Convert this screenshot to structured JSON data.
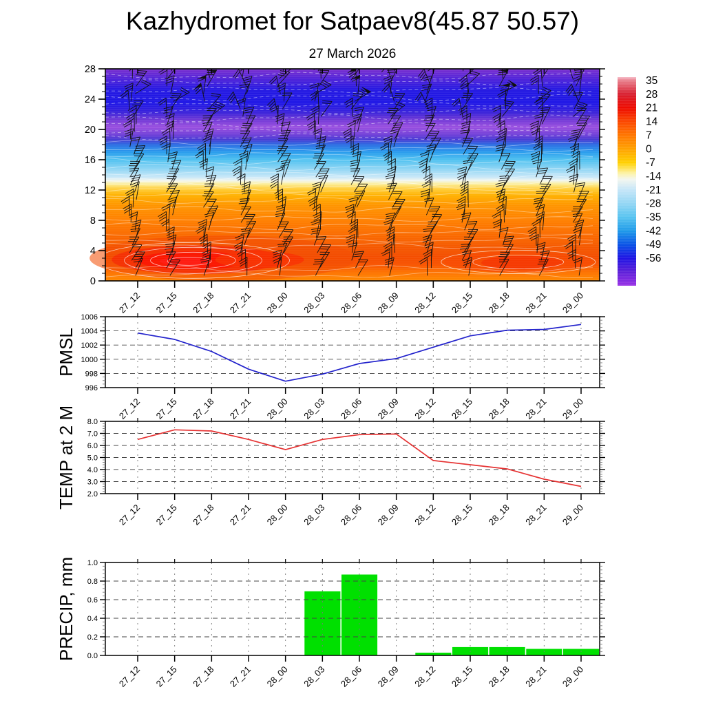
{
  "ui": {
    "title": "Kazhydromet for Satpaev8(45.87 50.57)",
    "subtitle": "27 March 2026"
  },
  "times": [
    "27_12",
    "27_15",
    "27_18",
    "27_21",
    "28_00",
    "28_03",
    "28_06",
    "28_09",
    "28_12",
    "28_15",
    "28_18",
    "28_21",
    "29_00"
  ],
  "chart_data": [
    {
      "id": "upper_air_cross_section",
      "type": "heatmap",
      "description": "time-height temperature cross-section with wind barbs and white contour lines",
      "ylim": [
        0,
        28
      ],
      "y_ticks": [
        0,
        4,
        8,
        12,
        16,
        20,
        24,
        28
      ],
      "y_minor_step": 1,
      "x_categories": [
        "27_12",
        "27_15",
        "27_18",
        "27_21",
        "28_00",
        "28_03",
        "28_06",
        "28_09",
        "28_12",
        "28_15",
        "28_18",
        "28_21",
        "29_00"
      ],
      "colorbar": {
        "tick_labels": [
          "35",
          "28",
          "21",
          "14",
          "7",
          "0",
          "-7",
          "-14",
          "-21",
          "-28",
          "-35",
          "-42",
          "-49",
          "-56"
        ],
        "stops": [
          {
            "offset": 0.0,
            "color": "#f6bac6"
          },
          {
            "offset": 0.017,
            "color": "#e87f8c"
          },
          {
            "offset": 0.082,
            "color": "#d82030"
          },
          {
            "offset": 0.148,
            "color": "#ee0c00"
          },
          {
            "offset": 0.214,
            "color": "#fb4800"
          },
          {
            "offset": 0.28,
            "color": "#ff7700"
          },
          {
            "offset": 0.345,
            "color": "#ffa200"
          },
          {
            "offset": 0.41,
            "color": "#ffd000"
          },
          {
            "offset": 0.462,
            "color": "#fdf3a8"
          },
          {
            "offset": 0.49,
            "color": "#f3f6ef"
          },
          {
            "offset": 0.54,
            "color": "#c6e6f8"
          },
          {
            "offset": 0.607,
            "color": "#93d6f4"
          },
          {
            "offset": 0.672,
            "color": "#57c3f0"
          },
          {
            "offset": 0.737,
            "color": "#1f9ae9"
          },
          {
            "offset": 0.803,
            "color": "#0a53e6"
          },
          {
            "offset": 0.868,
            "color": "#1f14e4"
          },
          {
            "offset": 0.93,
            "color": "#5a1fd8"
          },
          {
            "offset": 1.0,
            "color": "#9932e6"
          }
        ]
      },
      "height_color_profile": [
        [
          0.0,
          "#ff8a00"
        ],
        [
          1.2,
          "#fd7100"
        ],
        [
          2.2,
          "#f85200"
        ],
        [
          3.2,
          "#f44e00"
        ],
        [
          4.5,
          "#f55900"
        ],
        [
          6.0,
          "#fa6a00"
        ],
        [
          8.0,
          "#ff8000"
        ],
        [
          10.0,
          "#ff9600"
        ],
        [
          11.3,
          "#ffb100"
        ],
        [
          12.2,
          "#ffd040"
        ],
        [
          12.8,
          "#fcee9a"
        ],
        [
          13.25,
          "#f2f6ee"
        ],
        [
          13.7,
          "#c9e8f8"
        ],
        [
          14.8,
          "#8ed5f4"
        ],
        [
          16.0,
          "#4fc1f0"
        ],
        [
          17.0,
          "#2a9ded"
        ],
        [
          18.0,
          "#2d6ce2"
        ],
        [
          18.7,
          "#4a3ad4"
        ],
        [
          19.3,
          "#7040d8"
        ],
        [
          20.3,
          "#9a50e0"
        ],
        [
          21.3,
          "#7038d6"
        ],
        [
          22.2,
          "#3c24da"
        ],
        [
          23.5,
          "#1f17e6"
        ],
        [
          25.2,
          "#2419e2"
        ],
        [
          26.5,
          "#4a22da"
        ],
        [
          28.0,
          "#7c30d0"
        ]
      ],
      "hot_cores": [
        {
          "cx_tick": 2.3,
          "h": 3.0,
          "rx_ticks": 3.6,
          "ry_h": 3.0,
          "color": "#f24a00",
          "opacity": 0.55
        },
        {
          "cx_tick": 1.6,
          "h": 2.8,
          "rx_ticks": 2.3,
          "ry_h": 1.9,
          "color": "#f52e02",
          "opacity": 0.9
        },
        {
          "cx_tick": 1.5,
          "h": 2.7,
          "rx_ticks": 1.5,
          "ry_h": 1.2,
          "color": "#fb1500",
          "opacity": 0.95
        },
        {
          "cx_tick": 1.3,
          "h": 2.6,
          "rx_ticks": 0.7,
          "ry_h": 0.6,
          "color": "#ff1a10",
          "opacity": 1.0
        },
        {
          "cx_tick": 3.3,
          "h": 2.8,
          "rx_ticks": 1.2,
          "ry_h": 1.1,
          "color": "#f83000",
          "opacity": 0.85
        },
        {
          "cx_tick": 10.3,
          "h": 2.5,
          "rx_ticks": 2.0,
          "ry_h": 1.4,
          "color": "#f84a00",
          "opacity": 0.8
        },
        {
          "cx_tick": 10.4,
          "h": 2.4,
          "rx_ticks": 1.1,
          "ry_h": 0.9,
          "color": "#f63500",
          "opacity": 0.85
        }
      ],
      "wind_barbs": {
        "columns": 13,
        "level_start": 0.7,
        "level_end": 27.7,
        "level_step": 1.0
      }
    },
    {
      "id": "pmsl",
      "type": "line",
      "ylabel": "PMSL",
      "ylim": [
        996,
        1006
      ],
      "y_ticks": [
        996,
        998,
        1000,
        1002,
        1004,
        1006
      ],
      "y_tick_labels": [
        "996",
        "998",
        "1000",
        "1002",
        "1004",
        "1006"
      ],
      "y_minor_step": 0.5,
      "line_color": "#2222cc",
      "x_categories": [
        "27_12",
        "27_15",
        "27_18",
        "27_21",
        "28_00",
        "28_03",
        "28_06",
        "28_09",
        "28_12",
        "28_15",
        "28_18",
        "28_21",
        "29_00"
      ],
      "values": [
        1003.7,
        1002.8,
        1001.1,
        998.6,
        996.9,
        997.9,
        999.4,
        1000.1,
        1001.7,
        1003.3,
        1004.1,
        1004.2,
        1004.9
      ]
    },
    {
      "id": "temp_2m",
      "type": "line",
      "ylabel": "TEMP at 2 M",
      "ylim": [
        2.0,
        8.0
      ],
      "y_ticks": [
        2,
        3,
        4,
        5,
        6,
        7,
        8
      ],
      "y_tick_labels": [
        "2.0",
        "3.0",
        "4.0",
        "5.0",
        "6.0",
        "7.0",
        "8.0"
      ],
      "y_minor_step": 0.2,
      "line_color": "#e63232",
      "x_categories": [
        "27_12",
        "27_15",
        "27_18",
        "27_21",
        "28_00",
        "28_03",
        "28_06",
        "28_09",
        "28_12",
        "28_15",
        "28_18",
        "28_21",
        "29_00"
      ],
      "values": [
        6.5,
        7.3,
        7.2,
        6.5,
        5.65,
        6.5,
        6.9,
        6.95,
        4.75,
        4.4,
        4.05,
        3.2,
        2.6
      ]
    },
    {
      "id": "precip",
      "type": "bar",
      "ylabel": "PRECIP, mm",
      "ylim": [
        0.0,
        1.0
      ],
      "y_ticks": [
        0.0,
        0.2,
        0.4,
        0.6,
        0.8,
        1.0
      ],
      "y_tick_labels": [
        "0.0",
        "0.2",
        "0.4",
        "0.6",
        "0.8",
        "1.0"
      ],
      "y_minor_step": 0.04,
      "bar_color": "#00e000",
      "x_categories": [
        "27_12",
        "27_15",
        "27_18",
        "27_21",
        "28_00",
        "28_03",
        "28_06",
        "28_09",
        "28_12",
        "28_15",
        "28_18",
        "28_21",
        "29_00"
      ],
      "values": [
        0,
        0,
        0,
        0,
        0,
        0.69,
        0.87,
        0,
        0.03,
        0.09,
        0.09,
        0.07,
        0.07
      ]
    }
  ]
}
